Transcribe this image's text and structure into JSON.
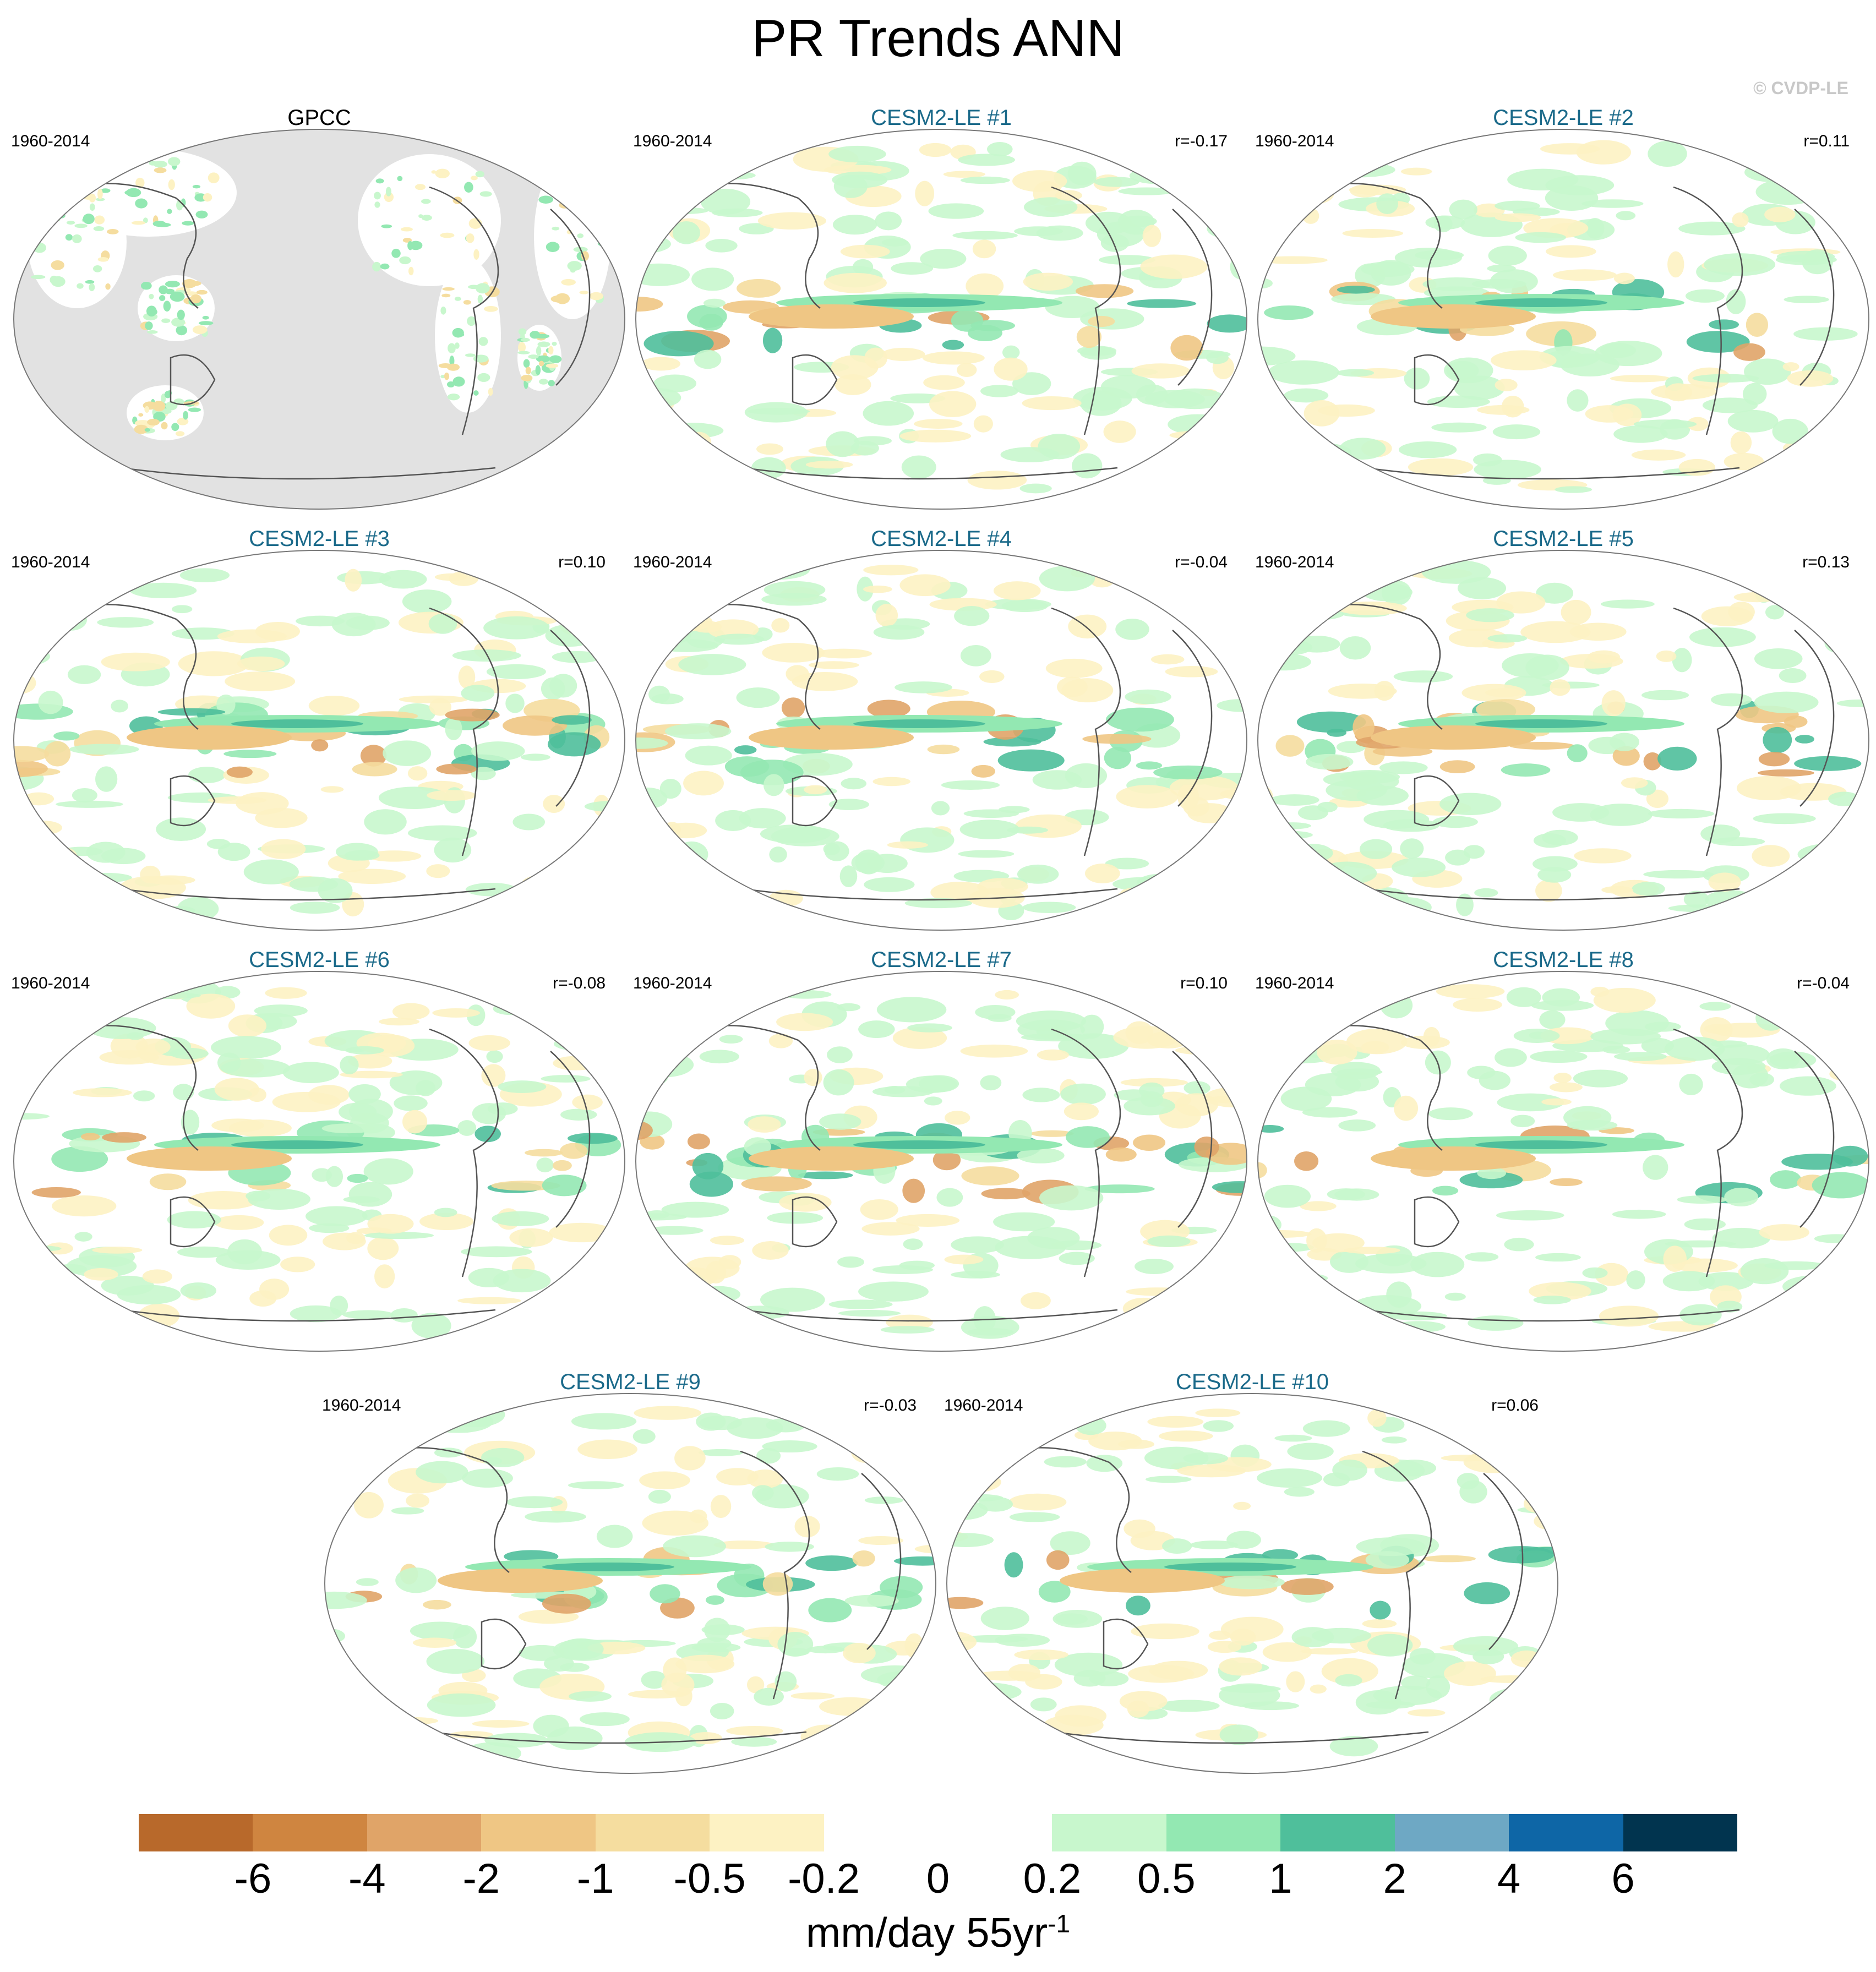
{
  "title": "PR Trends ANN",
  "watermark": "© CVDP-LE",
  "panels": [
    {
      "name": "GPCC",
      "period": "1960-2014",
      "r": "",
      "type": "obs"
    },
    {
      "name": "CESM2-LE #1",
      "period": "1960-2014",
      "r": "r=-0.17",
      "type": "model"
    },
    {
      "name": "CESM2-LE #2",
      "period": "1960-2014",
      "r": "r=0.11",
      "type": "model"
    },
    {
      "name": "CESM2-LE #3",
      "period": "1960-2014",
      "r": "r=0.10",
      "type": "model"
    },
    {
      "name": "CESM2-LE #4",
      "period": "1960-2014",
      "r": "r=-0.04",
      "type": "model"
    },
    {
      "name": "CESM2-LE #5",
      "period": "1960-2014",
      "r": "r=0.13",
      "type": "model"
    },
    {
      "name": "CESM2-LE #6",
      "period": "1960-2014",
      "r": "r=-0.08",
      "type": "model"
    },
    {
      "name": "CESM2-LE #7",
      "period": "1960-2014",
      "r": "r=0.10",
      "type": "model"
    },
    {
      "name": "CESM2-LE #8",
      "period": "1960-2014",
      "r": "r=-0.04",
      "type": "model"
    },
    {
      "name": "CESM2-LE #9",
      "period": "1960-2014",
      "r": "r=-0.03",
      "type": "model"
    },
    {
      "name": "CESM2-LE #10",
      "period": "1960-2014",
      "r": "r=0.06",
      "type": "model"
    }
  ],
  "colorbar": {
    "colors": [
      "#b8692b",
      "#cf8540",
      "#e0a468",
      "#efc684",
      "#f5dd9f",
      "#fdf2c3",
      "#ffffff",
      "#ffffff",
      "#c8f7cd",
      "#93e8b2",
      "#4fbf9b",
      "#6ea8c4",
      "#0e66a6",
      "#01344f"
    ],
    "labels": [
      "-6",
      "-4",
      "-2",
      "-1",
      "-0.5",
      "-0.2",
      "0",
      "0.2",
      "0.5",
      "1",
      "2",
      "4",
      "6"
    ],
    "units_main": "mm/day 55yr",
    "units_sup": "-1"
  },
  "colors": {
    "model_title": "#1b6a8a",
    "missing_data": "#e2e2e2"
  }
}
